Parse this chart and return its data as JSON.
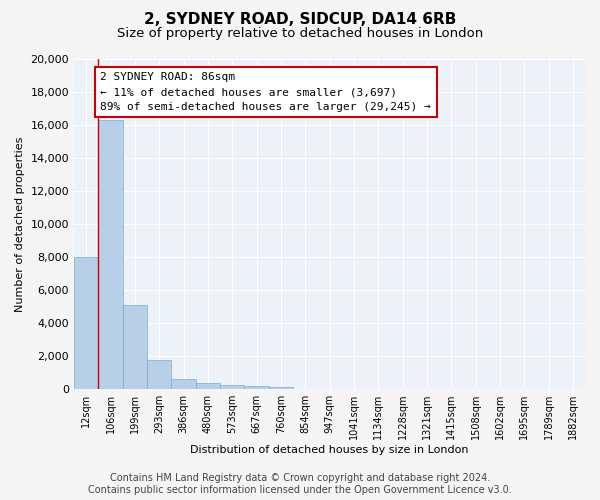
{
  "title": "2, SYDNEY ROAD, SIDCUP, DA14 6RB",
  "subtitle": "Size of property relative to detached houses in London",
  "xlabel": "Distribution of detached houses by size in London",
  "ylabel": "Number of detached properties",
  "categories": [
    "12sqm",
    "106sqm",
    "199sqm",
    "293sqm",
    "386sqm",
    "480sqm",
    "573sqm",
    "667sqm",
    "760sqm",
    "854sqm",
    "947sqm",
    "1041sqm",
    "1134sqm",
    "1228sqm",
    "1321sqm",
    "1415sqm",
    "1508sqm",
    "1602sqm",
    "1695sqm",
    "1789sqm",
    "1882sqm"
  ],
  "values": [
    8000,
    16300,
    5100,
    1750,
    600,
    360,
    250,
    180,
    130,
    0,
    0,
    0,
    0,
    0,
    0,
    0,
    0,
    0,
    0,
    0,
    0
  ],
  "bar_color": "#b8cfe8",
  "bar_edge_color": "#7aaed4",
  "annotation_text": "2 SYDNEY ROAD: 86sqm\n← 11% of detached houses are smaller (3,697)\n89% of semi-detached houses are larger (29,245) →",
  "annotation_box_facecolor": "#ffffff",
  "annotation_box_edgecolor": "#cc0000",
  "vline_color": "#cc0000",
  "footer_line1": "Contains HM Land Registry data © Crown copyright and database right 2024.",
  "footer_line2": "Contains public sector information licensed under the Open Government Licence v3.0.",
  "ylim": [
    0,
    20000
  ],
  "yticks": [
    0,
    2000,
    4000,
    6000,
    8000,
    10000,
    12000,
    14000,
    16000,
    18000,
    20000
  ],
  "background_color": "#edf2f9",
  "grid_color": "#ffffff",
  "fig_facecolor": "#f5f5f5",
  "title_fontsize": 11,
  "subtitle_fontsize": 9.5,
  "axis_label_fontsize": 8,
  "tick_fontsize": 7,
  "annotation_fontsize": 8,
  "footer_fontsize": 7
}
